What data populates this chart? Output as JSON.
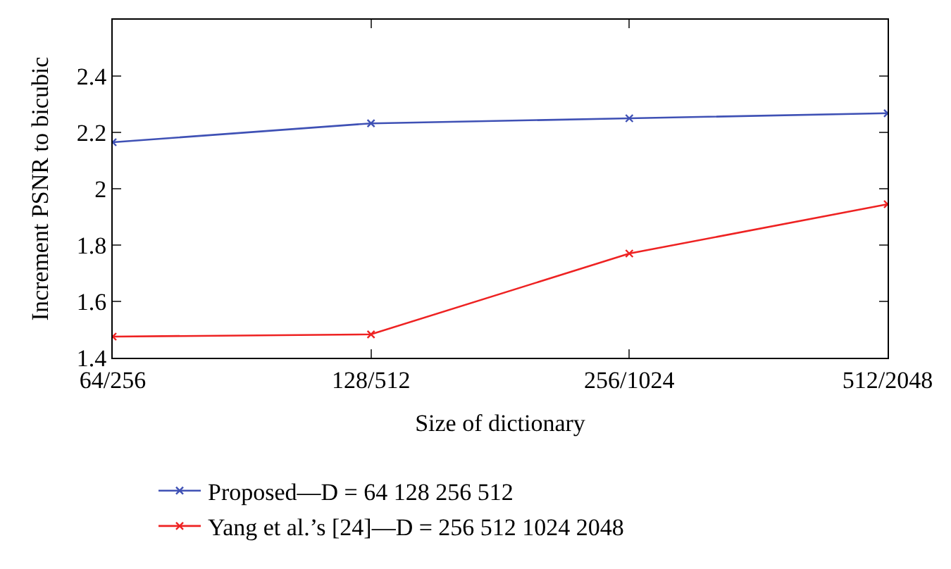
{
  "chart_data": {
    "type": "line",
    "xlabel": "Size of dictionary",
    "ylabel": "Increment PSNR to bicubic",
    "categories": [
      "64/256",
      "128/512",
      "256/1024",
      "512/2048"
    ],
    "series": [
      {
        "name": "Proposed—D = 64 128 256 512",
        "color": "#3f51b5",
        "values": [
          2.165,
          2.232,
          2.25,
          2.268
        ]
      },
      {
        "name": "Yang et al.’s [24]—D = 256 512 1024 2048",
        "color": "#ee2222",
        "values": [
          1.475,
          1.483,
          1.77,
          1.945
        ]
      }
    ],
    "ylim": [
      1.4,
      2.6
    ],
    "yticks": [
      1.4,
      1.6,
      1.8,
      2,
      2.2,
      2.4
    ],
    "legend": "bottom",
    "marker": "cross",
    "line_style": "solid"
  }
}
